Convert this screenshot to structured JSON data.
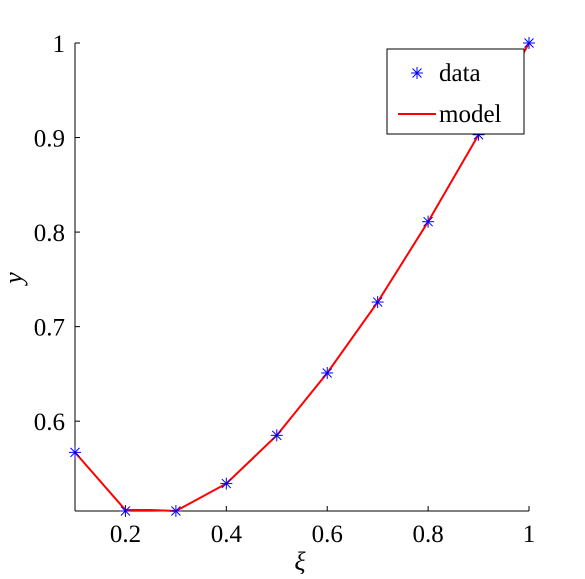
{
  "chart_data": {
    "type": "line",
    "xlabel": "ξ",
    "ylabel": "y",
    "xlim": [
      0.1,
      1.0
    ],
    "ylim": [
      0.505,
      1.0
    ],
    "xticks": [
      0.2,
      0.4,
      0.6,
      0.8,
      1.0
    ],
    "xtick_labels": [
      "0.2",
      "0.4",
      "0.6",
      "0.8",
      "1"
    ],
    "yticks": [
      0.6,
      0.7,
      0.8,
      0.9,
      1.0
    ],
    "ytick_labels": [
      "0.6",
      "0.7",
      "0.8",
      "0.9",
      "1"
    ],
    "grid": false,
    "legend_position": "top-right",
    "series": [
      {
        "name": "data",
        "style": "markers",
        "marker": "asterisk",
        "color": "#0000ff",
        "x": [
          0.1,
          0.2,
          0.3,
          0.4,
          0.5,
          0.6,
          0.7,
          0.8,
          0.9,
          1.0
        ],
        "y": [
          0.567,
          0.505,
          0.505,
          0.534,
          0.585,
          0.651,
          0.726,
          0.811,
          0.903,
          1.0
        ]
      },
      {
        "name": "model",
        "style": "line",
        "color": "#ff0000",
        "x": [
          0.1,
          0.2,
          0.25,
          0.3,
          0.4,
          0.5,
          0.6,
          0.7,
          0.8,
          0.9,
          1.0
        ],
        "y": [
          0.567,
          0.506,
          0.506,
          0.505,
          0.534,
          0.585,
          0.651,
          0.726,
          0.811,
          0.903,
          1.0
        ]
      }
    ]
  }
}
